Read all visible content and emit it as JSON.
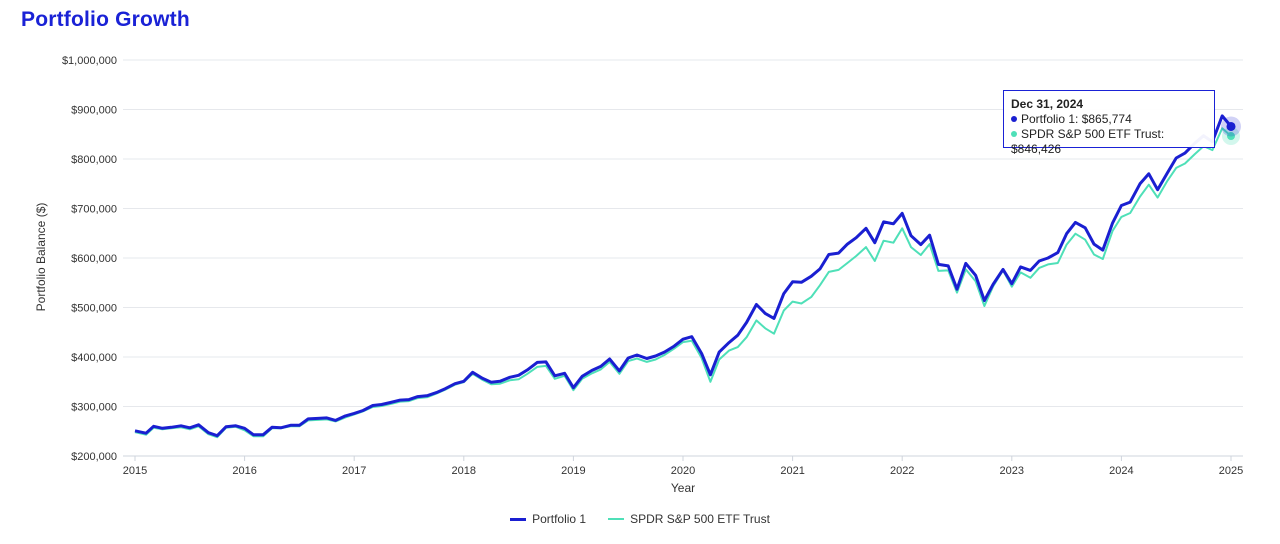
{
  "page": {
    "title": "Portfolio Growth"
  },
  "tooltip": {
    "date": "Dec 31, 2024",
    "line1": "Portfolio 1: $865,774",
    "line2": "SPDR S&P 500 ETF Trust: $846,426"
  },
  "legend": [
    {
      "name": "Portfolio 1",
      "color": "#1a1fd1"
    },
    {
      "name": "SPDR S&P 500 ETF Trust",
      "color": "#4fe0b8"
    }
  ],
  "chart_data": {
    "type": "line",
    "title": "Portfolio Growth",
    "xlabel": "Year",
    "ylabel": "Portfolio Balance ($)",
    "xlim": [
      2015,
      2025
    ],
    "ylim": [
      200000,
      1000000
    ],
    "x_ticks": [
      "2015",
      "2016",
      "2017",
      "2018",
      "2019",
      "2020",
      "2021",
      "2022",
      "2023",
      "2024",
      "2025"
    ],
    "y_ticks": [
      "$200,000",
      "$300,000",
      "$400,000",
      "$500,000",
      "$600,000",
      "$700,000",
      "$800,000",
      "$900,000",
      "$1,000,000"
    ],
    "y_tick_values": [
      200000,
      300000,
      400000,
      500000,
      600000,
      700000,
      800000,
      900000,
      1000000
    ],
    "grid": true,
    "legend_position": "bottom-center",
    "series": [
      {
        "name": "Portfolio 1",
        "color": "#1a1fd1",
        "points": [
          [
            2015.0,
            251000
          ],
          [
            2015.1,
            246000
          ],
          [
            2015.17,
            260000
          ],
          [
            2015.25,
            256000
          ],
          [
            2015.33,
            258000
          ],
          [
            2015.42,
            261000
          ],
          [
            2015.5,
            257000
          ],
          [
            2015.58,
            263000
          ],
          [
            2015.67,
            247000
          ],
          [
            2015.75,
            241000
          ],
          [
            2015.83,
            259000
          ],
          [
            2015.92,
            261000
          ],
          [
            2016.0,
            256000
          ],
          [
            2016.08,
            243000
          ],
          [
            2016.17,
            243000
          ],
          [
            2016.25,
            258000
          ],
          [
            2016.33,
            257000
          ],
          [
            2016.42,
            262000
          ],
          [
            2016.5,
            262000
          ],
          [
            2016.58,
            275000
          ],
          [
            2016.67,
            276000
          ],
          [
            2016.75,
            277000
          ],
          [
            2016.83,
            272000
          ],
          [
            2016.92,
            281000
          ],
          [
            2017.0,
            286000
          ],
          [
            2017.08,
            292000
          ],
          [
            2017.17,
            302000
          ],
          [
            2017.25,
            304000
          ],
          [
            2017.33,
            308000
          ],
          [
            2017.42,
            313000
          ],
          [
            2017.5,
            314000
          ],
          [
            2017.58,
            320000
          ],
          [
            2017.67,
            322000
          ],
          [
            2017.75,
            328000
          ],
          [
            2017.83,
            336000
          ],
          [
            2017.92,
            346000
          ],
          [
            2018.0,
            351000
          ],
          [
            2018.08,
            369000
          ],
          [
            2018.17,
            357000
          ],
          [
            2018.25,
            349000
          ],
          [
            2018.33,
            351000
          ],
          [
            2018.42,
            359000
          ],
          [
            2018.5,
            363000
          ],
          [
            2018.58,
            374000
          ],
          [
            2018.67,
            389000
          ],
          [
            2018.75,
            390000
          ],
          [
            2018.83,
            362000
          ],
          [
            2018.92,
            367000
          ],
          [
            2019.0,
            338000
          ],
          [
            2019.08,
            361000
          ],
          [
            2019.17,
            373000
          ],
          [
            2019.25,
            381000
          ],
          [
            2019.33,
            396000
          ],
          [
            2019.42,
            372000
          ],
          [
            2019.5,
            398000
          ],
          [
            2019.58,
            404000
          ],
          [
            2019.67,
            397000
          ],
          [
            2019.75,
            402000
          ],
          [
            2019.83,
            410000
          ],
          [
            2019.92,
            422000
          ],
          [
            2020.0,
            436000
          ],
          [
            2020.08,
            441000
          ],
          [
            2020.17,
            407000
          ],
          [
            2020.25,
            364000
          ],
          [
            2020.33,
            410000
          ],
          [
            2020.42,
            429000
          ],
          [
            2020.5,
            444000
          ],
          [
            2020.58,
            470000
          ],
          [
            2020.67,
            506000
          ],
          [
            2020.75,
            488000
          ],
          [
            2020.83,
            478000
          ],
          [
            2020.92,
            528000
          ],
          [
            2021.0,
            552000
          ],
          [
            2021.08,
            551000
          ],
          [
            2021.17,
            563000
          ],
          [
            2021.25,
            578000
          ],
          [
            2021.33,
            607000
          ],
          [
            2021.42,
            610000
          ],
          [
            2021.5,
            628000
          ],
          [
            2021.58,
            641000
          ],
          [
            2021.67,
            660000
          ],
          [
            2021.75,
            631000
          ],
          [
            2021.83,
            673000
          ],
          [
            2021.92,
            669000
          ],
          [
            2022.0,
            690000
          ],
          [
            2022.08,
            645000
          ],
          [
            2022.17,
            627000
          ],
          [
            2022.25,
            646000
          ],
          [
            2022.33,
            587000
          ],
          [
            2022.42,
            584000
          ],
          [
            2022.5,
            537000
          ],
          [
            2022.58,
            589000
          ],
          [
            2022.67,
            565000
          ],
          [
            2022.75,
            514000
          ],
          [
            2022.83,
            547000
          ],
          [
            2022.92,
            577000
          ],
          [
            2023.0,
            548000
          ],
          [
            2023.08,
            582000
          ],
          [
            2023.17,
            575000
          ],
          [
            2023.25,
            594000
          ],
          [
            2023.33,
            600000
          ],
          [
            2023.42,
            611000
          ],
          [
            2023.5,
            649000
          ],
          [
            2023.58,
            672000
          ],
          [
            2023.67,
            661000
          ],
          [
            2023.75,
            628000
          ],
          [
            2023.83,
            616000
          ],
          [
            2023.92,
            671000
          ],
          [
            2024.0,
            706000
          ],
          [
            2024.08,
            713000
          ],
          [
            2024.17,
            750000
          ],
          [
            2024.25,
            770000
          ],
          [
            2024.33,
            738000
          ],
          [
            2024.42,
            772000
          ],
          [
            2024.5,
            802000
          ],
          [
            2024.58,
            812000
          ],
          [
            2024.67,
            832000
          ],
          [
            2024.75,
            847000
          ],
          [
            2024.83,
            835000
          ],
          [
            2024.92,
            887000
          ],
          [
            2025.0,
            865774
          ]
        ]
      },
      {
        "name": "SPDR S&P 500 ETF Trust",
        "color": "#4fe0b8",
        "points": [
          [
            2015.0,
            248000
          ],
          [
            2015.1,
            243000
          ],
          [
            2015.17,
            257000
          ],
          [
            2015.25,
            254000
          ],
          [
            2015.33,
            256000
          ],
          [
            2015.42,
            258000
          ],
          [
            2015.5,
            254000
          ],
          [
            2015.58,
            260000
          ],
          [
            2015.67,
            244000
          ],
          [
            2015.75,
            238000
          ],
          [
            2015.83,
            257000
          ],
          [
            2015.92,
            259000
          ],
          [
            2016.0,
            252000
          ],
          [
            2016.08,
            240000
          ],
          [
            2016.17,
            240000
          ],
          [
            2016.25,
            256000
          ],
          [
            2016.33,
            256000
          ],
          [
            2016.42,
            260000
          ],
          [
            2016.5,
            260000
          ],
          [
            2016.58,
            272000
          ],
          [
            2016.67,
            273000
          ],
          [
            2016.75,
            274000
          ],
          [
            2016.83,
            270000
          ],
          [
            2016.92,
            278000
          ],
          [
            2017.0,
            284000
          ],
          [
            2017.08,
            290000
          ],
          [
            2017.17,
            299000
          ],
          [
            2017.25,
            301000
          ],
          [
            2017.33,
            305000
          ],
          [
            2017.42,
            310000
          ],
          [
            2017.5,
            311000
          ],
          [
            2017.58,
            317000
          ],
          [
            2017.67,
            319000
          ],
          [
            2017.75,
            326000
          ],
          [
            2017.83,
            334000
          ],
          [
            2017.92,
            344000
          ],
          [
            2018.0,
            349000
          ],
          [
            2018.08,
            366000
          ],
          [
            2018.17,
            354000
          ],
          [
            2018.25,
            345000
          ],
          [
            2018.33,
            346000
          ],
          [
            2018.42,
            353000
          ],
          [
            2018.5,
            355000
          ],
          [
            2018.58,
            366000
          ],
          [
            2018.67,
            380000
          ],
          [
            2018.75,
            382000
          ],
          [
            2018.83,
            356000
          ],
          [
            2018.92,
            362000
          ],
          [
            2019.0,
            333000
          ],
          [
            2019.08,
            356000
          ],
          [
            2019.17,
            367000
          ],
          [
            2019.25,
            375000
          ],
          [
            2019.33,
            390000
          ],
          [
            2019.42,
            366000
          ],
          [
            2019.5,
            392000
          ],
          [
            2019.58,
            397000
          ],
          [
            2019.67,
            390000
          ],
          [
            2019.75,
            395000
          ],
          [
            2019.83,
            404000
          ],
          [
            2019.92,
            417000
          ],
          [
            2020.0,
            430000
          ],
          [
            2020.08,
            433000
          ],
          [
            2020.17,
            398000
          ],
          [
            2020.25,
            350000
          ],
          [
            2020.33,
            395000
          ],
          [
            2020.42,
            413000
          ],
          [
            2020.5,
            420000
          ],
          [
            2020.58,
            440000
          ],
          [
            2020.67,
            474000
          ],
          [
            2020.75,
            458000
          ],
          [
            2020.83,
            447000
          ],
          [
            2020.92,
            494000
          ],
          [
            2021.0,
            512000
          ],
          [
            2021.08,
            508000
          ],
          [
            2021.17,
            521000
          ],
          [
            2021.25,
            545000
          ],
          [
            2021.33,
            572000
          ],
          [
            2021.42,
            576000
          ],
          [
            2021.5,
            590000
          ],
          [
            2021.58,
            604000
          ],
          [
            2021.67,
            622000
          ],
          [
            2021.75,
            594000
          ],
          [
            2021.83,
            635000
          ],
          [
            2021.92,
            631000
          ],
          [
            2022.0,
            660000
          ],
          [
            2022.08,
            622000
          ],
          [
            2022.17,
            606000
          ],
          [
            2022.25,
            628000
          ],
          [
            2022.33,
            574000
          ],
          [
            2022.42,
            575000
          ],
          [
            2022.5,
            530000
          ],
          [
            2022.58,
            577000
          ],
          [
            2022.67,
            553000
          ],
          [
            2022.75,
            503000
          ],
          [
            2022.83,
            543000
          ],
          [
            2022.92,
            575000
          ],
          [
            2023.0,
            542000
          ],
          [
            2023.08,
            571000
          ],
          [
            2023.17,
            560000
          ],
          [
            2023.25,
            580000
          ],
          [
            2023.33,
            587000
          ],
          [
            2023.42,
            590000
          ],
          [
            2023.5,
            627000
          ],
          [
            2023.58,
            649000
          ],
          [
            2023.67,
            637000
          ],
          [
            2023.75,
            607000
          ],
          [
            2023.83,
            598000
          ],
          [
            2023.92,
            655000
          ],
          [
            2024.0,
            683000
          ],
          [
            2024.08,
            691000
          ],
          [
            2024.17,
            724000
          ],
          [
            2024.25,
            748000
          ],
          [
            2024.33,
            722000
          ],
          [
            2024.42,
            756000
          ],
          [
            2024.5,
            782000
          ],
          [
            2024.58,
            791000
          ],
          [
            2024.67,
            810000
          ],
          [
            2024.75,
            826000
          ],
          [
            2024.83,
            818000
          ],
          [
            2024.92,
            862000
          ],
          [
            2025.0,
            846426
          ]
        ]
      }
    ]
  }
}
